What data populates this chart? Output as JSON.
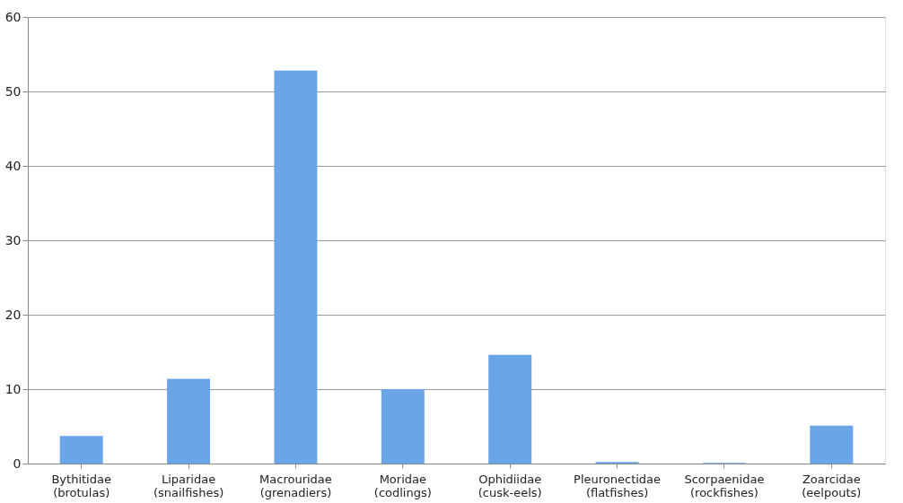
{
  "chart_data": {
    "type": "bar",
    "categories": [
      "Bythitidae\n(brotulas)",
      "Liparidae\n(snailfishes)",
      "Macrouridae\n(grenadiers)",
      "Moridae\n(codlings)",
      "Ophidiidae\n(cusk-eels)",
      "Pleuronectidae\n(flatfishes)",
      "Scorpaenidae\n(rockfishes)",
      "Zoarcidae\n(eelpouts)"
    ],
    "values": [
      3.7,
      11.4,
      52.8,
      10,
      14.6,
      0.2,
      0.1,
      5.1
    ],
    "color": "#6aa5e8",
    "ylim": [
      0,
      60
    ],
    "yticks": [
      0,
      10,
      20,
      30,
      40,
      50,
      60
    ],
    "grid": "y"
  }
}
